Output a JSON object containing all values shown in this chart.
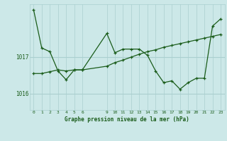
{
  "title": "Graphe pression niveau de la mer (hPa)",
  "bg_color": "#cce8e8",
  "grid_color": "#aacfcf",
  "line_color": "#1a5c1a",
  "x_ticks": [
    0,
    1,
    2,
    3,
    4,
    5,
    6,
    9,
    10,
    11,
    12,
    13,
    14,
    15,
    16,
    17,
    18,
    19,
    20,
    21,
    22,
    23
  ],
  "ylim": [
    1015.55,
    1018.45
  ],
  "y_ticks": [
    1016,
    1017
  ],
  "series1_x": [
    0,
    1,
    2,
    3,
    4,
    5,
    6,
    9,
    10,
    11,
    12,
    13,
    14,
    15,
    16,
    17,
    18,
    19,
    20,
    21,
    22,
    23
  ],
  "series1_y": [
    1018.3,
    1017.25,
    1017.15,
    1016.62,
    1016.38,
    1016.65,
    1016.65,
    1017.65,
    1017.12,
    1017.22,
    1017.22,
    1017.22,
    1017.05,
    1016.62,
    1016.3,
    1016.35,
    1016.12,
    1016.3,
    1016.42,
    1016.42,
    1017.85,
    1018.05
  ],
  "series2_x": [
    0,
    1,
    2,
    3,
    4,
    5,
    6,
    9,
    10,
    11,
    12,
    13,
    14,
    15,
    16,
    17,
    18,
    19,
    20,
    21,
    22,
    23
  ],
  "series2_y": [
    1016.55,
    1016.55,
    1016.6,
    1016.65,
    1016.62,
    1016.65,
    1016.65,
    1016.75,
    1016.85,
    1016.92,
    1017.0,
    1017.08,
    1017.15,
    1017.2,
    1017.27,
    1017.32,
    1017.37,
    1017.42,
    1017.47,
    1017.52,
    1017.57,
    1017.62
  ]
}
